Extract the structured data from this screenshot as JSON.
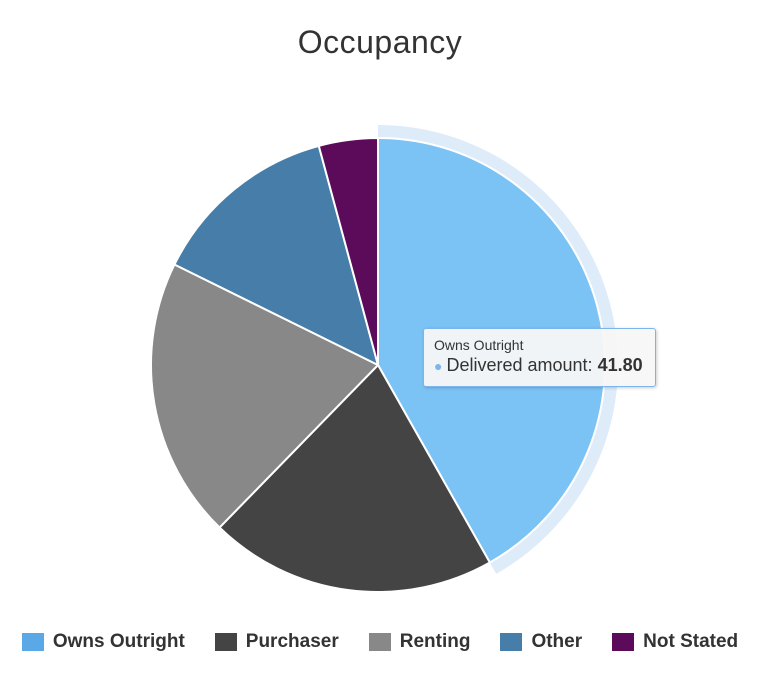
{
  "chart_data": {
    "type": "pie",
    "title": "Occupancy",
    "slices": [
      {
        "name": "Owns Outright",
        "value": 41.8,
        "color": "#7cc3f5",
        "legend_color": "#5aa9e6"
      },
      {
        "name": "Purchaser",
        "value": 20.5,
        "color": "#444444",
        "legend_color": "#444444"
      },
      {
        "name": "Renting",
        "value": 20.0,
        "color": "#888888",
        "legend_color": "#888888"
      },
      {
        "name": "Other",
        "value": 13.5,
        "color": "#467ea9",
        "legend_color": "#467ea9"
      },
      {
        "name": "Not Stated",
        "value": 4.2,
        "color": "#5c0b5a",
        "legend_color": "#5c0b5a"
      }
    ],
    "highlighted_slice": "Owns Outright",
    "legend_position": "bottom"
  },
  "tooltip": {
    "category": "Owns Outright",
    "series_label": "Delivered amount",
    "value": "41.80"
  }
}
